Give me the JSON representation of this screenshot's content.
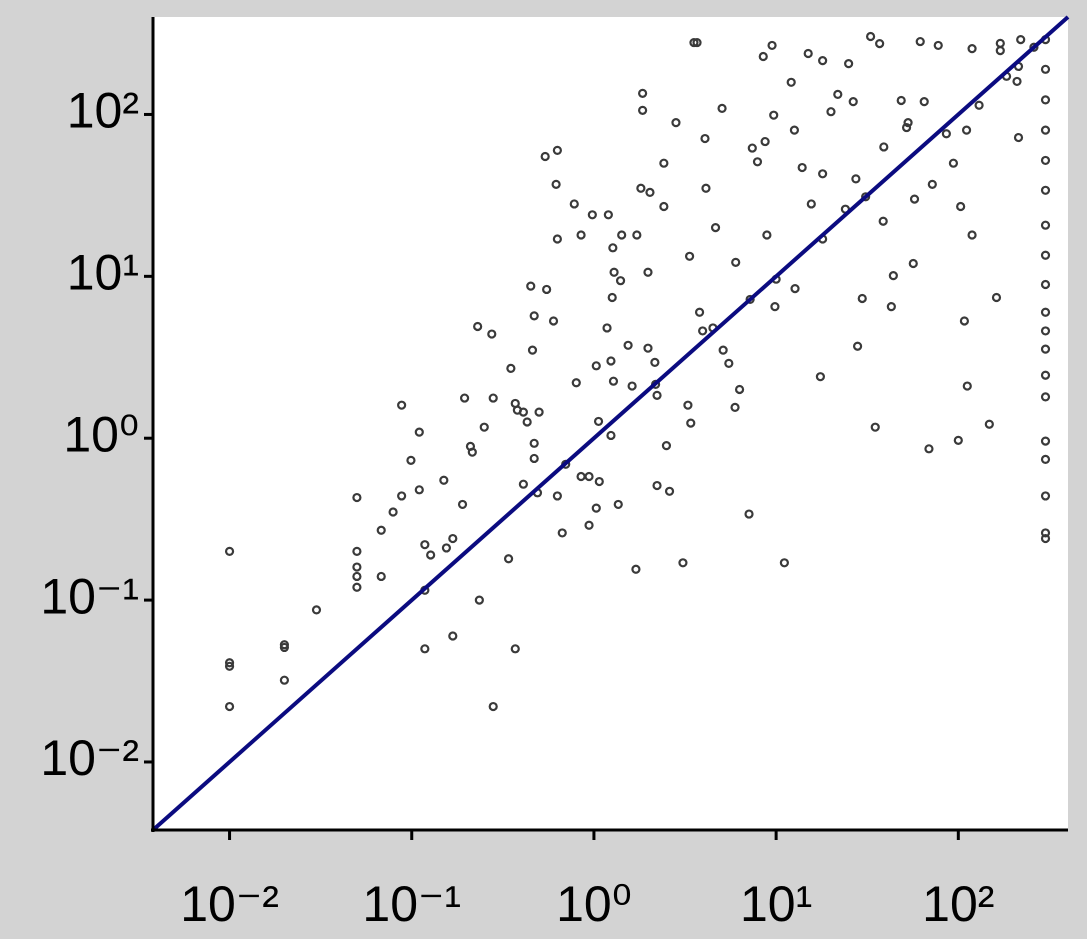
{
  "chart_data": {
    "type": "scatter",
    "log_x": true,
    "log_y": true,
    "xlim": [
      0.0038,
      400
    ],
    "ylim": [
      0.0038,
      400
    ],
    "xticks": [
      {
        "value": 0.01,
        "label": "10⁻²"
      },
      {
        "value": 0.1,
        "label": "10⁻¹"
      },
      {
        "value": 1,
        "label": "10⁰"
      },
      {
        "value": 10,
        "label": "10¹"
      },
      {
        "value": 100,
        "label": "10²"
      }
    ],
    "yticks": [
      {
        "value": 0.01,
        "label": "10⁻²"
      },
      {
        "value": 0.1,
        "label": "10⁻¹"
      },
      {
        "value": 1,
        "label": "10⁰"
      },
      {
        "value": 10,
        "label": "10¹"
      },
      {
        "value": 100,
        "label": "10²"
      }
    ],
    "grid": false,
    "diagonal": {
      "color": "#0b0b80"
    },
    "series": [
      {
        "color": "#3a3a3a",
        "x": [
          0.01,
          0.01,
          0.01,
          0.01,
          0.02,
          0.02,
          0.02,
          0.03,
          0.05,
          0.05,
          0.05,
          0.05,
          0.05,
          0.068,
          0.068,
          0.079,
          0.088,
          0.088,
          0.099,
          0.11,
          0.11,
          0.118,
          0.118,
          0.118,
          0.127,
          0.15,
          0.155,
          0.168,
          0.168,
          0.19,
          0.195,
          0.21,
          0.215,
          0.23,
          0.235,
          0.25,
          0.275,
          0.28,
          0.28,
          0.34,
          0.35,
          0.37,
          0.37,
          0.38,
          0.41,
          0.41,
          0.43,
          0.45,
          0.46,
          0.47,
          0.47,
          0.47,
          0.49,
          0.5,
          0.54,
          0.55,
          0.6,
          0.62,
          0.63,
          0.63,
          0.63,
          0.67,
          0.7,
          0.78,
          0.8,
          0.85,
          0.85,
          0.94,
          0.94,
          0.98,
          1.03,
          1.03,
          1.06,
          1.07,
          1.18,
          1.2,
          1.24,
          1.24,
          1.26,
          1.27,
          1.28,
          1.29,
          1.36,
          1.4,
          1.42,
          1.54,
          1.62,
          1.7,
          1.72,
          1.81,
          1.85,
          1.85,
          1.98,
          1.98,
          2.03,
          2.16,
          2.18,
          2.22,
          2.22,
          2.42,
          2.42,
          2.5,
          2.6,
          2.82,
          3.08,
          3.28,
          3.35,
          3.4,
          3.54,
          3.68,
          3.8,
          3.95,
          4.07,
          4.12,
          4.5,
          4.65,
          5.05,
          5.12,
          5.5,
          5.95,
          6.0,
          6.3,
          7.1,
          7.2,
          7.4,
          7.9,
          8.5,
          8.7,
          8.9,
          9.5,
          9.7,
          9.85,
          10,
          11.1,
          12.1,
          12.6,
          12.7,
          13.9,
          15,
          15.6,
          17.5,
          18,
          18,
          18,
          20,
          21.8,
          24,
          25,
          26.5,
          27.4,
          28,
          29.7,
          31,
          33,
          35,
          37,
          38.7,
          39,
          42.9,
          44,
          48.6,
          52,
          53,
          56.6,
          57.5,
          61.8,
          65,
          69,
          72,
          77.6,
          86,
          94,
          100,
          103,
          108,
          111,
          112,
          119,
          119,
          130,
          148,
          162,
          170,
          184,
          210,
          214,
          214,
          170,
          220,
          260,
          301,
          301,
          301,
          301,
          301,
          301,
          301,
          301,
          301,
          301,
          301,
          301,
          301,
          301,
          301,
          301,
          301,
          301,
          301
        ],
        "values": [
          0.2,
          0.041,
          0.039,
          0.022,
          0.053,
          0.051,
          0.032,
          0.087,
          0.43,
          0.2,
          0.16,
          0.14,
          0.12,
          0.27,
          0.14,
          0.35,
          1.6,
          0.44,
          0.73,
          0.48,
          1.09,
          0.115,
          0.05,
          0.22,
          0.19,
          0.55,
          0.21,
          0.24,
          0.06,
          0.39,
          1.77,
          0.89,
          0.82,
          4.9,
          0.1,
          1.17,
          4.4,
          1.77,
          0.022,
          0.18,
          2.7,
          1.64,
          0.05,
          1.49,
          1.45,
          0.52,
          1.26,
          8.7,
          3.5,
          5.7,
          0.93,
          0.75,
          0.46,
          1.45,
          55,
          8.3,
          5.3,
          37,
          60,
          17,
          0.44,
          0.26,
          0.69,
          28,
          2.2,
          18,
          0.58,
          0.58,
          0.29,
          24,
          2.8,
          0.37,
          1.27,
          0.54,
          4.8,
          24,
          3.0,
          1.04,
          7.4,
          15,
          2.25,
          10.6,
          0.39,
          9.4,
          18,
          3.75,
          2.1,
          0.155,
          18,
          35,
          135,
          106,
          3.6,
          10.6,
          33,
          2.94,
          2.15,
          0.51,
          1.84,
          27,
          50,
          0.9,
          0.47,
          89,
          0.17,
          1.6,
          13.3,
          1.24,
          278,
          278,
          6.0,
          4.6,
          71,
          35,
          4.8,
          20,
          109,
          3.5,
          2.9,
          1.55,
          12.2,
          2.0,
          0.34,
          7.2,
          62,
          51,
          228,
          68,
          18,
          267,
          99,
          6.5,
          9.6,
          0.17,
          158,
          80,
          8.4,
          47,
          238,
          28,
          2.4,
          17,
          43,
          215,
          104,
          133,
          26,
          206,
          120,
          40,
          3.7,
          7.3,
          31,
          303,
          1.17,
          274,
          21.9,
          63,
          6.5,
          10.1,
          122,
          83,
          89,
          12,
          30,
          282,
          120,
          0.86,
          37,
          267,
          76,
          50,
          0.97,
          27,
          5.3,
          80,
          2.1,
          255,
          18,
          114,
          1.22,
          7.4,
          248,
          172,
          160,
          72,
          198,
          275,
          290,
          260,
          0.24,
          0.26,
          0.44,
          0.74,
          0.96,
          1.8,
          2.45,
          3.55,
          4.6,
          6,
          8.9,
          13.5,
          20.7,
          34,
          52,
          80,
          123,
          190,
          290
        ]
      }
    ]
  }
}
